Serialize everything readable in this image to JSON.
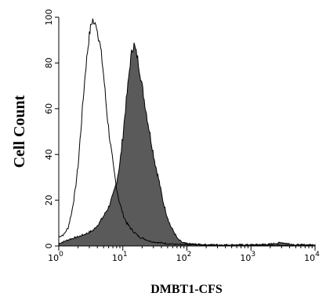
{
  "chart_data": {
    "type": "area",
    "xlabel": "DMBT1-CFS",
    "ylabel": "Cell Count",
    "xscale": "log",
    "xlim": [
      1,
      10000
    ],
    "ylim": [
      0,
      100
    ],
    "x_ticks": [
      {
        "base": "10",
        "exp": "0",
        "value": 1
      },
      {
        "base": "10",
        "exp": "1",
        "value": 10
      },
      {
        "base": "10",
        "exp": "2",
        "value": 100
      },
      {
        "base": "10",
        "exp": "3",
        "value": 1000
      },
      {
        "base": "10",
        "exp": "4",
        "value": 10000
      }
    ],
    "y_ticks": [
      "0",
      "20",
      "40",
      "60",
      "80",
      "100"
    ],
    "series": [
      {
        "style": "outline",
        "color": "#000000",
        "x": [
          1.0,
          1.2,
          1.4,
          1.6,
          1.8,
          2.0,
          2.2,
          2.4,
          2.6,
          2.8,
          3.0,
          3.2,
          3.4,
          3.6,
          3.8,
          4.0,
          4.3,
          4.6,
          5.0,
          5.4,
          5.8,
          6.3,
          7.0,
          7.8,
          8.7,
          10.0,
          11.5,
          13,
          15,
          18,
          22,
          27,
          35,
          50,
          80,
          150,
          400,
          1000,
          3000,
          10000
        ],
        "y": [
          4,
          5,
          8,
          15,
          24,
          35,
          50,
          64,
          76,
          85,
          92,
          97,
          99,
          96,
          98,
          94,
          90,
          84,
          75,
          64,
          55,
          46,
          36,
          27,
          20,
          14,
          10,
          8,
          6,
          4,
          3,
          2,
          1.5,
          1,
          0.5,
          0.5,
          0.3,
          0.3,
          0.3,
          0.3
        ]
      },
      {
        "style": "filled",
        "color": "#5a5a5a",
        "x": [
          1.0,
          1.5,
          2.0,
          2.5,
          3.0,
          3.5,
          4.0,
          4.5,
          5.0,
          6.0,
          7.0,
          8.0,
          9.0,
          10.0,
          11.0,
          12.0,
          13.0,
          14.0,
          15.0,
          17.0,
          19.0,
          21.0,
          24.0,
          28.0,
          32.0,
          37.0,
          42.0,
          48.0,
          55.0,
          63.0,
          72.0,
          85.0,
          100,
          200,
          500,
          1000,
          2000,
          3000,
          5000,
          10000
        ],
        "y": [
          1,
          3,
          4,
          5,
          6,
          7,
          9,
          11,
          13,
          17,
          22,
          28,
          36,
          48,
          60,
          70,
          80,
          86,
          88,
          82,
          74,
          66,
          56,
          45,
          36,
          28,
          20,
          14,
          9,
          6,
          3,
          1.5,
          1,
          0.5,
          0.5,
          0.5,
          0.8,
          1.5,
          0.5,
          0.5
        ]
      }
    ]
  }
}
